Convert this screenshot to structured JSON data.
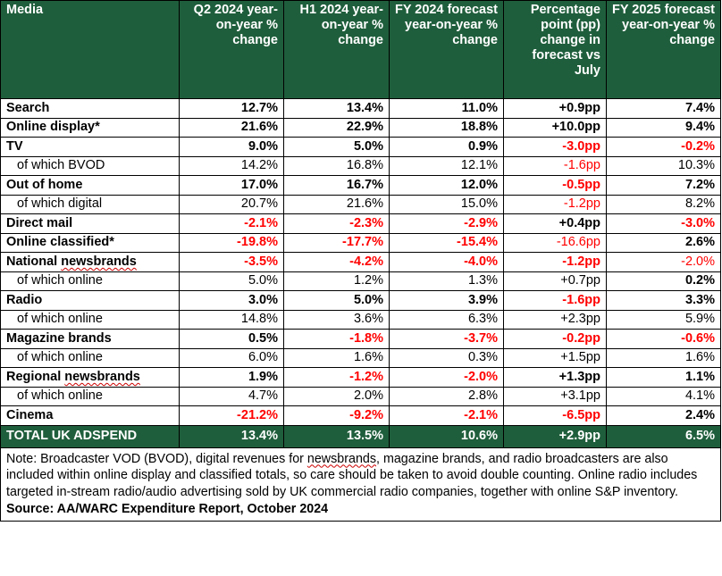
{
  "headers": [
    "Media",
    "Q2 2024 year-on-year % change",
    "H1 2024 year-on-year % change",
    "FY 2024 forecast year-on-year % change",
    "Percentage point (pp) change in forecast vs July",
    "FY 2025 forecast year-on-year % change"
  ],
  "rows": [
    {
      "label": "Search",
      "type": "main",
      "cells": [
        {
          "v": "12.7%",
          "neg": false
        },
        {
          "v": "13.4%",
          "neg": false
        },
        {
          "v": "11.0%",
          "neg": false
        },
        {
          "v": "+0.9pp",
          "neg": false
        },
        {
          "v": "7.4%",
          "neg": false
        }
      ]
    },
    {
      "label": "Online display*",
      "type": "main",
      "cells": [
        {
          "v": "21.6%",
          "neg": false
        },
        {
          "v": "22.9%",
          "neg": false
        },
        {
          "v": "18.8%",
          "neg": false
        },
        {
          "v": "+10.0pp",
          "neg": false
        },
        {
          "v": "9.4%",
          "neg": false
        }
      ]
    },
    {
      "label": "TV",
      "type": "main",
      "cells": [
        {
          "v": "9.0%",
          "neg": false
        },
        {
          "v": "5.0%",
          "neg": false
        },
        {
          "v": "0.9%",
          "neg": false
        },
        {
          "v": "-3.0pp",
          "neg": true
        },
        {
          "v": "-0.2%",
          "neg": true
        }
      ]
    },
    {
      "label": "of which BVOD",
      "type": "sub",
      "cells": [
        {
          "v": "14.2%",
          "neg": false
        },
        {
          "v": "16.8%",
          "neg": false
        },
        {
          "v": "12.1%",
          "neg": false
        },
        {
          "v": "-1.6pp",
          "neg": true
        },
        {
          "v": "10.3%",
          "neg": false
        }
      ]
    },
    {
      "label": "Out of home",
      "type": "main",
      "cells": [
        {
          "v": "17.0%",
          "neg": false
        },
        {
          "v": "16.7%",
          "neg": false
        },
        {
          "v": "12.0%",
          "neg": false
        },
        {
          "v": "-0.5pp",
          "neg": true
        },
        {
          "v": "7.2%",
          "neg": false
        }
      ]
    },
    {
      "label": "of which digital",
      "type": "sub",
      "cells": [
        {
          "v": "20.7%",
          "neg": false
        },
        {
          "v": "21.6%",
          "neg": false
        },
        {
          "v": "15.0%",
          "neg": false
        },
        {
          "v": "-1.2pp",
          "neg": true
        },
        {
          "v": "8.2%",
          "neg": false
        }
      ]
    },
    {
      "label": "Direct mail",
      "type": "main",
      "cells": [
        {
          "v": "-2.1%",
          "neg": true
        },
        {
          "v": "-2.3%",
          "neg": true
        },
        {
          "v": "-2.9%",
          "neg": true
        },
        {
          "v": "+0.4pp",
          "neg": false
        },
        {
          "v": "-3.0%",
          "neg": true
        }
      ]
    },
    {
      "label": "Online classified*",
      "type": "main",
      "cells": [
        {
          "v": "-19.8%",
          "neg": true
        },
        {
          "v": "-17.7%",
          "neg": true
        },
        {
          "v": "-15.4%",
          "neg": true
        },
        {
          "v": "-16.6pp",
          "neg": true,
          "normal": true
        },
        {
          "v": "2.6%",
          "neg": false
        }
      ]
    },
    {
      "label": "National newsbrands",
      "type": "main",
      "cells": [
        {
          "v": "-3.5%",
          "neg": true
        },
        {
          "v": "-4.2%",
          "neg": true
        },
        {
          "v": "-4.0%",
          "neg": true
        },
        {
          "v": "-1.2pp",
          "neg": true
        },
        {
          "v": "-2.0%",
          "neg": true,
          "normal": true
        }
      ]
    },
    {
      "label": "of which online",
      "type": "sub",
      "cells": [
        {
          "v": "5.0%",
          "neg": false
        },
        {
          "v": "1.2%",
          "neg": false
        },
        {
          "v": "1.3%",
          "neg": false
        },
        {
          "v": "+0.7pp",
          "neg": false
        },
        {
          "v": "0.2%",
          "neg": false,
          "bold": true
        }
      ]
    },
    {
      "label": "Radio",
      "type": "main",
      "cells": [
        {
          "v": "3.0%",
          "neg": false
        },
        {
          "v": "5.0%",
          "neg": false
        },
        {
          "v": "3.9%",
          "neg": false
        },
        {
          "v": "-1.6pp",
          "neg": true
        },
        {
          "v": "3.3%",
          "neg": false
        }
      ]
    },
    {
      "label": "of which online",
      "type": "sub",
      "cells": [
        {
          "v": "14.8%",
          "neg": false
        },
        {
          "v": "3.6%",
          "neg": false
        },
        {
          "v": "6.3%",
          "neg": false
        },
        {
          "v": "+2.3pp",
          "neg": false
        },
        {
          "v": "5.9%",
          "neg": false
        }
      ]
    },
    {
      "label": "Magazine brands",
      "type": "main",
      "cells": [
        {
          "v": "0.5%",
          "neg": false
        },
        {
          "v": "-1.8%",
          "neg": true
        },
        {
          "v": "-3.7%",
          "neg": true
        },
        {
          "v": "-0.2pp",
          "neg": true
        },
        {
          "v": "-0.6%",
          "neg": true
        }
      ]
    },
    {
      "label": "of which online",
      "type": "sub",
      "cells": [
        {
          "v": "6.0%",
          "neg": false
        },
        {
          "v": "1.6%",
          "neg": false
        },
        {
          "v": "0.3%",
          "neg": false
        },
        {
          "v": "+1.5pp",
          "neg": false
        },
        {
          "v": "1.6%",
          "neg": false
        }
      ]
    },
    {
      "label": "Regional newsbrands",
      "type": "main",
      "cells": [
        {
          "v": "1.9%",
          "neg": false
        },
        {
          "v": "-1.2%",
          "neg": true
        },
        {
          "v": "-2.0%",
          "neg": true
        },
        {
          "v": "+1.3pp",
          "neg": false
        },
        {
          "v": "1.1%",
          "neg": false
        }
      ]
    },
    {
      "label": "of which online",
      "type": "sub",
      "cells": [
        {
          "v": "4.7%",
          "neg": false
        },
        {
          "v": "2.0%",
          "neg": false
        },
        {
          "v": "2.8%",
          "neg": false
        },
        {
          "v": "+3.1pp",
          "neg": false
        },
        {
          "v": "4.1%",
          "neg": false
        }
      ]
    },
    {
      "label": "Cinema",
      "type": "main",
      "cells": [
        {
          "v": "-21.2%",
          "neg": true
        },
        {
          "v": "-9.2%",
          "neg": true
        },
        {
          "v": "-2.1%",
          "neg": true
        },
        {
          "v": "-6.5pp",
          "neg": true
        },
        {
          "v": "2.4%",
          "neg": false
        }
      ]
    }
  ],
  "total": {
    "label": "TOTAL UK ADSPEND",
    "cells": [
      "13.4%",
      "13.5%",
      "10.6%",
      "+2.9pp",
      "6.5%"
    ]
  },
  "note": "Note: Broadcaster VOD (BVOD), digital revenues for newsbrands, magazine brands, and radio broadcasters are also included within online display and classified totals, so care should be taken to avoid double counting. Online radio includes targeted in-stream radio/audio advertising sold by UK commercial radio companies, together with online S&P inventory.",
  "source": "Source: AA/WARC Expenditure Report, October 2024",
  "colors": {
    "header_bg": "#1f5e3c",
    "negative": "#ff0000"
  }
}
